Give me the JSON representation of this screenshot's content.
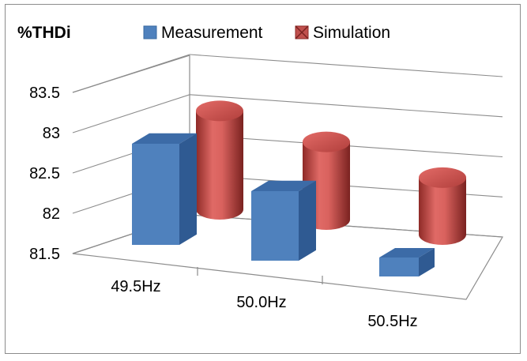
{
  "chart_data": {
    "type": "bar",
    "title": "%THDi",
    "categories": [
      "49.5Hz",
      "50.0Hz",
      "50.5Hz"
    ],
    "series": [
      {
        "name": "Measurement",
        "shape": "box",
        "color": "#4f81bd",
        "values": [
          83.1,
          82.6,
          81.8
        ]
      },
      {
        "name": "Simulation",
        "shape": "cylinder",
        "color": "#c0504d",
        "values": [
          83.4,
          83.0,
          82.6
        ]
      }
    ],
    "yticks": [
      "83.5",
      "83",
      "82.5",
      "82",
      "81.5"
    ],
    "ylim": [
      81.5,
      83.5
    ],
    "grid": true,
    "legend_position": "top"
  }
}
